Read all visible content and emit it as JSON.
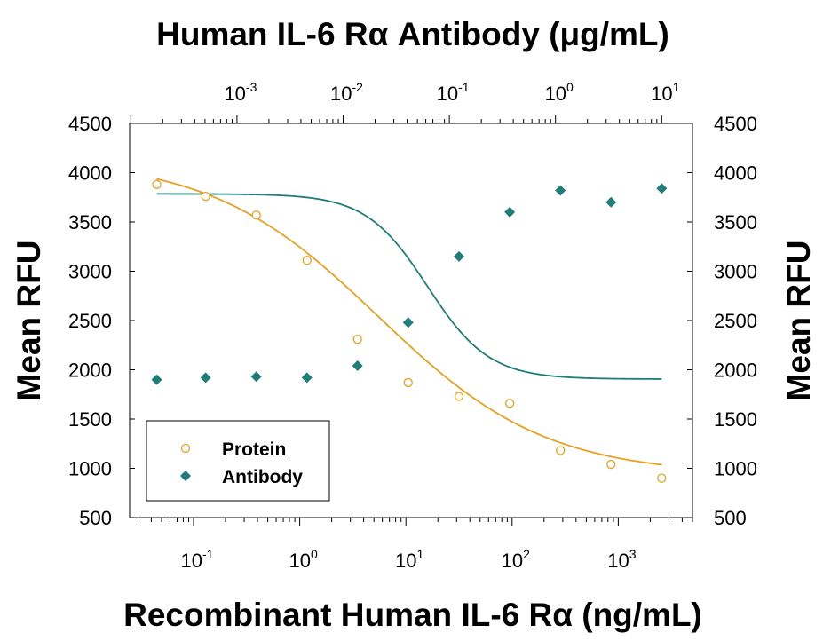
{
  "chart_data": {
    "type": "scatter",
    "title": "Human IL-6 Rα Antibody (μg/mL)",
    "xlabel": "Recombinant Human IL-6 Rα (ng/mL)",
    "ylabel": "Mean RFU",
    "ylabel_right": "Mean RFU",
    "x_scale": "log",
    "xlim": [
      0.025,
      5000
    ],
    "ylim": [
      500,
      4500
    ],
    "y_ticks": [
      500,
      1000,
      1500,
      2000,
      2500,
      3000,
      3500,
      4000,
      4500
    ],
    "x_ticks_bottom": [
      {
        "value": 0.1,
        "base": "10",
        "exp": "-1"
      },
      {
        "value": 1,
        "base": "10",
        "exp": "0"
      },
      {
        "value": 10,
        "base": "10",
        "exp": "1"
      },
      {
        "value": 100,
        "base": "10",
        "exp": "2"
      },
      {
        "value": 1000,
        "base": "10",
        "exp": "3"
      }
    ],
    "x_ticks_top": [
      {
        "value": 0.001,
        "base": "10",
        "exp": "-3"
      },
      {
        "value": 0.01,
        "base": "10",
        "exp": "-2"
      },
      {
        "value": 0.1,
        "base": "10",
        "exp": "-1"
      },
      {
        "value": 1,
        "base": "10",
        "exp": "0"
      },
      {
        "value": 10,
        "base": "10",
        "exp": "1"
      }
    ],
    "legend_position": "bottom-left",
    "grid": false,
    "series": [
      {
        "name": "Protein",
        "marker": "open-circle",
        "color": "#e8a020",
        "x": [
          0.045,
          0.13,
          0.39,
          1.17,
          3.5,
          10.5,
          31.6,
          95,
          285,
          855,
          2565
        ],
        "y": [
          3880,
          3760,
          3570,
          3110,
          2310,
          1870,
          1730,
          1660,
          1180,
          1040,
          900
        ],
        "fit": {
          "top": 4150,
          "bottom": 930,
          "ec50": 5.5,
          "hill": 0.55
        }
      },
      {
        "name": "Antibody",
        "marker": "filled-diamond",
        "color": "#1f7e77",
        "x": [
          0.045,
          0.13,
          0.39,
          1.17,
          3.5,
          10.5,
          31.6,
          95,
          285,
          855,
          2565
        ],
        "y": [
          1900,
          1920,
          1930,
          1920,
          2040,
          2480,
          3150,
          3600,
          3820,
          3700,
          3840
        ],
        "fit": {
          "top": 3785,
          "bottom": 1905,
          "ec50": 16,
          "hill": 1.5
        }
      }
    ]
  }
}
